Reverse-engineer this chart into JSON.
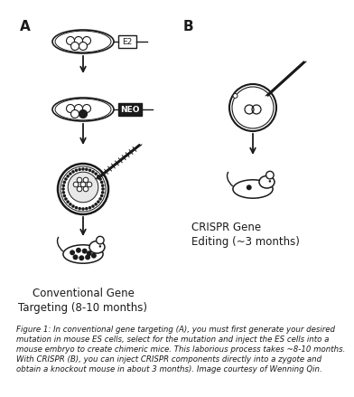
{
  "title_A": "Conventional Gene\nTargeting (8-10 months)",
  "title_B": "CRISPR Gene\nEditing (~3 months)",
  "label_A": "A",
  "label_B": "B",
  "e2_label": "E2",
  "neo_label": "NEO",
  "figure_caption": "Figure 1: In conventional gene targeting (A), you must first generate your desired mutation in mouse ES cells, select for the mutation and inject the ES cells into a mouse embryo to create chimeric mice. This laborious process takes ~8-10 months. With CRISPR (B), you can inject CRISPR components directly into a zygote and obtain a knockout mouse in about 3 months). Image courtesy of Wenning Qin.",
  "bg_color": "#ffffff",
  "line_color": "#1a1a1a",
  "title_fontsize": 8.5,
  "caption_fontsize": 6.2
}
